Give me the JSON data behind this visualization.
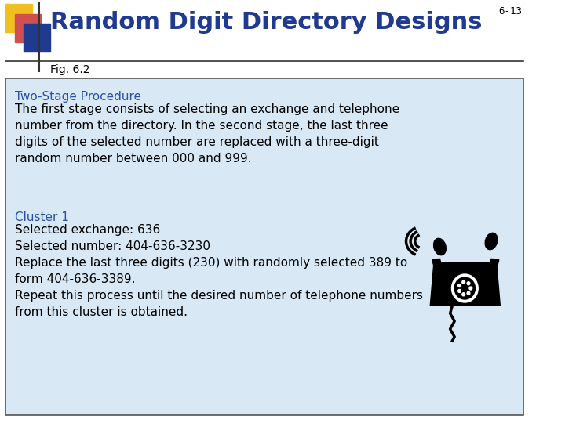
{
  "page_number": "6-13",
  "title": "Random Digit Directory Designs",
  "title_color": "#1F3A8F",
  "subtitle": "Fig. 6.2",
  "subtitle_color": "#000000",
  "bg_color": "#FFFFFF",
  "box_bg_color": "#D8E8F5",
  "box_border_color": "#555555",
  "section1_heading": "Two-Stage Procedure",
  "section1_heading_color": "#2A52AA",
  "section1_body": "The first stage consists of selecting an exchange and telephone\nnumber from the directory. In the second stage, the last three\ndigits of the selected number are replaced with a three-digit\nrandom number between 000 and 999.",
  "section2_heading": "Cluster 1",
  "section2_heading_color": "#2A52AA",
  "section2_body": "Selected exchange: 636\nSelected number: 404-636-3230\nReplace the last three digits (230) with randomly selected 389 to\nform 404-636-3389.\nRepeat this process until the desired number of telephone numbers\nfrom this cluster is obtained.",
  "text_color": "#000000",
  "logo_yellow": "#F0C020",
  "logo_red": "#D05050",
  "logo_blue": "#1F3A8F",
  "divider_color": "#333333",
  "font_size_title": 22,
  "font_size_subtitle": 10,
  "font_size_section_heading": 11,
  "font_size_body": 11,
  "font_size_page_num": 9
}
